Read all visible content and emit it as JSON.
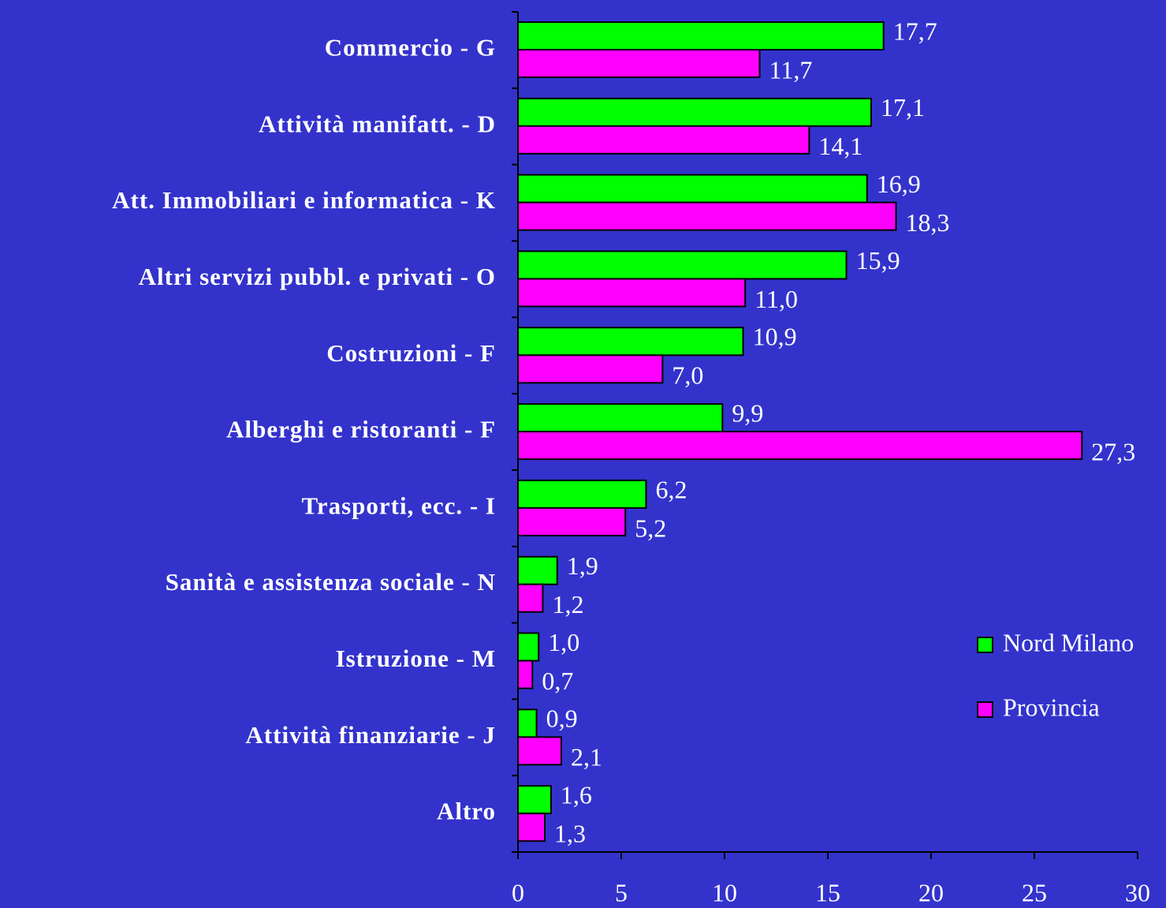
{
  "chart_data": {
    "type": "barh",
    "categories": [
      "Commercio - G",
      "Attività manifatt. - D",
      "Att. Immobiliari e informatica - K",
      "Altri servizi pubbl. e privati - O",
      "Costruzioni - F",
      "Alberghi e ristoranti - F",
      "Trasporti, ecc. - I",
      "Sanità e assistenza sociale - N",
      "Istruzione - M",
      "Attività finanziarie - J",
      "Altro"
    ],
    "series": [
      {
        "name": "Nord Milano",
        "color": "#00ff00",
        "values": [
          17.7,
          17.1,
          16.9,
          15.9,
          10.9,
          9.9,
          6.2,
          1.9,
          1.0,
          0.9,
          1.6
        ],
        "value_labels": [
          "17,7",
          "17,1",
          "16,9",
          "15,9",
          "10,9",
          "9,9",
          "6,2",
          "1,9",
          "1,0",
          "0,9",
          "1,6"
        ]
      },
      {
        "name": "Provincia",
        "color": "#ff00ff",
        "values": [
          11.7,
          14.1,
          18.3,
          11.0,
          7.0,
          27.3,
          5.2,
          1.2,
          0.7,
          2.1,
          1.3
        ],
        "value_labels": [
          "11,7",
          "14,1",
          "18,3",
          "11,0",
          "7,0",
          "27,3",
          "5,2",
          "1,2",
          "0,7",
          "2,1",
          "1,3"
        ]
      }
    ],
    "xlim": [
      0,
      30
    ],
    "xticks": [
      0,
      5,
      10,
      15,
      20,
      25,
      30
    ],
    "legend": "right"
  }
}
